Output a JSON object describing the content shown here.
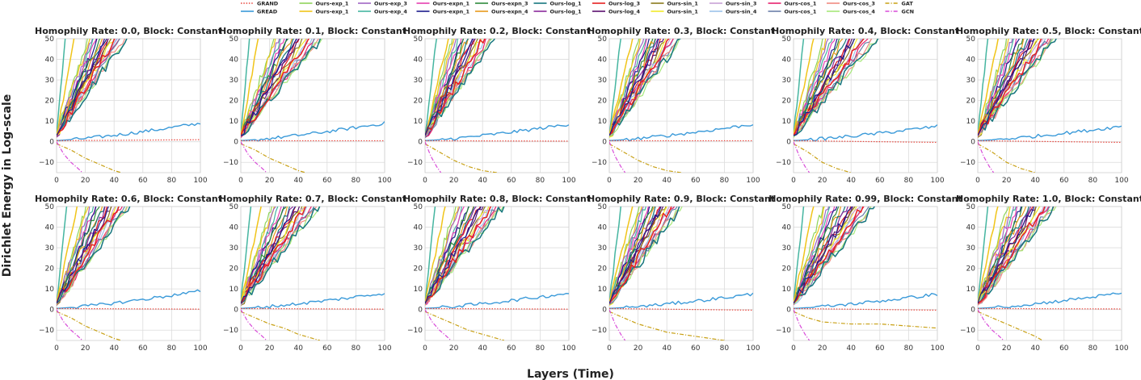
{
  "chart_data": {
    "type": "line",
    "shared_xlabel": "Layers (Time)",
    "shared_ylabel": "Dirichlet Energy in Log-scale",
    "xlim": [
      0,
      100
    ],
    "ylim": [
      -15,
      50
    ],
    "x_ticks": [
      "0",
      "20",
      "40",
      "60",
      "80",
      "100"
    ],
    "y_ticks": [
      "−10",
      "0",
      "10",
      "20",
      "30",
      "40",
      "50"
    ],
    "grid": true,
    "legend_position": "top-center",
    "legend": [
      {
        "name": "GRAND",
        "color": "#e8453c",
        "dash": "dotted"
      },
      {
        "name": "GREAD",
        "color": "#3a9ad9",
        "dash": "solid"
      },
      {
        "name": "Ours-exp_1",
        "color": "#8fd45a",
        "dash": "solid"
      },
      {
        "name": "Ours-exp_1",
        "color": "#f0c419",
        "dash": "solid"
      },
      {
        "name": "Ours-exp_3",
        "color": "#a066c4",
        "dash": "solid"
      },
      {
        "name": "Ours-exp_4",
        "color": "#45b5a0",
        "dash": "solid"
      },
      {
        "name": "Ours-expn_1",
        "color": "#e63fb0",
        "dash": "solid"
      },
      {
        "name": "Ours-expn_1",
        "color": "#1c1c8c",
        "dash": "solid"
      },
      {
        "name": "Ours-expn_3",
        "color": "#2e8b3c",
        "dash": "solid"
      },
      {
        "name": "Ours-expn_4",
        "color": "#e89a1c",
        "dash": "solid"
      },
      {
        "name": "Ours-log_1",
        "color": "#16767e",
        "dash": "solid"
      },
      {
        "name": "Ours-log_1",
        "color": "#8a2a9c",
        "dash": "solid"
      },
      {
        "name": "Ours-log_3",
        "color": "#e62020",
        "dash": "solid"
      },
      {
        "name": "Ours-log_4",
        "color": "#5a0f6e",
        "dash": "solid"
      },
      {
        "name": "Ours-sin_1",
        "color": "#8a7a1c",
        "dash": "solid"
      },
      {
        "name": "Ours-sin_1",
        "color": "#f2ea2a",
        "dash": "solid"
      },
      {
        "name": "Ours-sin_3",
        "color": "#c8a2d6",
        "dash": "solid"
      },
      {
        "name": "Ours-sin_4",
        "color": "#9cc2ea",
        "dash": "solid"
      },
      {
        "name": "Ours-cos_1",
        "color": "#e8226e",
        "dash": "solid"
      },
      {
        "name": "Ours-cos_1",
        "color": "#6a7fa8",
        "dash": "solid"
      },
      {
        "name": "Ours-cos_3",
        "color": "#f08a80",
        "dash": "solid"
      },
      {
        "name": "Ours-cos_4",
        "color": "#a6e87a",
        "dash": "solid"
      },
      {
        "name": "GAT",
        "color": "#c8a014",
        "dash": "dashdot"
      },
      {
        "name": "GCN",
        "color": "#d84ad8",
        "dash": "dashdot"
      }
    ],
    "subplots": [
      {
        "title": "Homophily Rate: 0.0, Block: Constant",
        "gread_end": 9.0,
        "grand_end": 1.0,
        "gat": [
          [
            0,
            -1
          ],
          [
            10,
            -4
          ],
          [
            20,
            -8
          ],
          [
            30,
            -11
          ],
          [
            40,
            -14
          ],
          [
            45,
            -15
          ]
        ],
        "gcn": [
          [
            0,
            0
          ],
          [
            5,
            -6
          ],
          [
            10,
            -10
          ],
          [
            15,
            -13
          ],
          [
            18,
            -15
          ]
        ],
        "steep": [
          [
            0,
            3
          ],
          [
            6,
            50
          ]
        ],
        "slow": [
          [
            0,
            3
          ],
          [
            50,
            52
          ]
        ],
        "fast": [
          [
            0,
            3
          ],
          [
            18,
            50
          ]
        ]
      },
      {
        "title": "Homophily Rate: 0.1, Block: Constant",
        "gread_end": 9.0,
        "grand_end": 0.5,
        "gat": [
          [
            0,
            -1
          ],
          [
            10,
            -4
          ],
          [
            20,
            -8
          ],
          [
            30,
            -11
          ],
          [
            40,
            -14
          ],
          [
            45,
            -15
          ]
        ],
        "gcn": [
          [
            0,
            0
          ],
          [
            5,
            -6
          ],
          [
            10,
            -10
          ],
          [
            15,
            -13
          ],
          [
            18,
            -15
          ]
        ],
        "steep": [
          [
            0,
            3
          ],
          [
            6,
            50
          ]
        ],
        "slow": [
          [
            0,
            3
          ],
          [
            58,
            52
          ]
        ],
        "fast": [
          [
            0,
            3
          ],
          [
            18,
            50
          ]
        ]
      },
      {
        "title": "Homophily Rate: 0.2, Block: Constant",
        "gread_end": 8.5,
        "grand_end": 0.3,
        "gat": [
          [
            0,
            -1
          ],
          [
            10,
            -5
          ],
          [
            20,
            -9
          ],
          [
            30,
            -12
          ],
          [
            40,
            -14
          ],
          [
            50,
            -15
          ]
        ],
        "gcn": [
          [
            0,
            0
          ],
          [
            4,
            -7
          ],
          [
            8,
            -12
          ],
          [
            11,
            -15
          ]
        ],
        "steep": [
          [
            0,
            3
          ],
          [
            8,
            50
          ]
        ],
        "slow": [
          [
            0,
            3
          ],
          [
            50,
            52
          ]
        ],
        "fast": [
          [
            0,
            3
          ],
          [
            14,
            50
          ]
        ]
      },
      {
        "title": "Homophily Rate: 0.3, Block: Constant",
        "gread_end": 8.5,
        "grand_end": 0.5,
        "gat": [
          [
            0,
            -1
          ],
          [
            10,
            -5
          ],
          [
            20,
            -9
          ],
          [
            30,
            -12
          ],
          [
            40,
            -14
          ],
          [
            50,
            -15
          ]
        ],
        "gcn": [
          [
            0,
            0
          ],
          [
            4,
            -7
          ],
          [
            8,
            -12
          ],
          [
            11,
            -15
          ]
        ],
        "steep": [
          [
            0,
            3
          ],
          [
            8,
            50
          ]
        ],
        "slow": [
          [
            0,
            3
          ],
          [
            52,
            52
          ]
        ],
        "fast": [
          [
            0,
            3
          ],
          [
            16,
            50
          ]
        ]
      },
      {
        "title": "Homophily Rate: 0.4, Block: Constant",
        "gread_end": 7.5,
        "grand_end": -0.3,
        "gat": [
          [
            0,
            -1
          ],
          [
            10,
            -5
          ],
          [
            20,
            -10
          ],
          [
            30,
            -13
          ],
          [
            40,
            -15
          ]
        ],
        "gcn": [
          [
            0,
            0
          ],
          [
            4,
            -7
          ],
          [
            8,
            -12
          ],
          [
            11,
            -15
          ]
        ],
        "steep": [
          [
            0,
            3
          ],
          [
            7,
            50
          ]
        ],
        "slow": [
          [
            0,
            3
          ],
          [
            60,
            52
          ]
        ],
        "fast": [
          [
            0,
            3
          ],
          [
            15,
            50
          ]
        ]
      },
      {
        "title": "Homophily Rate: 0.5, Block: Constant",
        "gread_end": 7.5,
        "grand_end": -0.3,
        "gat": [
          [
            0,
            -1
          ],
          [
            10,
            -5
          ],
          [
            20,
            -10
          ],
          [
            30,
            -13
          ],
          [
            40,
            -15
          ]
        ],
        "gcn": [
          [
            0,
            0
          ],
          [
            4,
            -7
          ],
          [
            8,
            -12
          ],
          [
            11,
            -15
          ]
        ],
        "steep": [
          [
            0,
            3
          ],
          [
            7,
            50
          ]
        ],
        "slow": [
          [
            0,
            3
          ],
          [
            56,
            52
          ]
        ],
        "fast": [
          [
            0,
            3
          ],
          [
            15,
            50
          ]
        ]
      },
      {
        "title": "Homophily Rate: 0.6, Block: Constant",
        "gread_end": 9.0,
        "grand_end": 0.2,
        "gat": [
          [
            0,
            -1
          ],
          [
            10,
            -4
          ],
          [
            20,
            -8
          ],
          [
            30,
            -11
          ],
          [
            40,
            -14
          ],
          [
            45,
            -15
          ]
        ],
        "gcn": [
          [
            0,
            0
          ],
          [
            5,
            -6
          ],
          [
            10,
            -10
          ],
          [
            15,
            -13
          ],
          [
            18,
            -15
          ]
        ],
        "steep": [
          [
            0,
            3
          ],
          [
            7,
            50
          ]
        ],
        "slow": [
          [
            0,
            3
          ],
          [
            52,
            52
          ]
        ],
        "fast": [
          [
            0,
            3
          ],
          [
            16,
            50
          ]
        ]
      },
      {
        "title": "Homophily Rate: 0.7, Block: Constant",
        "gread_end": 8.0,
        "grand_end": 0.2,
        "gat": [
          [
            0,
            -1
          ],
          [
            10,
            -4
          ],
          [
            20,
            -7
          ],
          [
            30,
            -9
          ],
          [
            40,
            -12
          ],
          [
            50,
            -14
          ],
          [
            55,
            -15
          ]
        ],
        "gcn": [
          [
            0,
            0
          ],
          [
            5,
            -6
          ],
          [
            10,
            -10
          ],
          [
            15,
            -13
          ],
          [
            18,
            -15
          ]
        ],
        "steep": [
          [
            0,
            3
          ],
          [
            7,
            50
          ]
        ],
        "slow": [
          [
            0,
            3
          ],
          [
            56,
            52
          ]
        ],
        "fast": [
          [
            0,
            3
          ],
          [
            16,
            50
          ]
        ]
      },
      {
        "title": "Homophily Rate: 0.8, Block: Constant",
        "gread_end": 8.0,
        "grand_end": 0.2,
        "gat": [
          [
            0,
            -1
          ],
          [
            10,
            -4
          ],
          [
            20,
            -7
          ],
          [
            30,
            -10
          ],
          [
            40,
            -12
          ],
          [
            50,
            -14
          ],
          [
            55,
            -15
          ]
        ],
        "gcn": [
          [
            0,
            0
          ],
          [
            5,
            -6
          ],
          [
            10,
            -10
          ],
          [
            15,
            -13
          ],
          [
            18,
            -15
          ]
        ],
        "steep": [
          [
            0,
            3
          ],
          [
            7,
            50
          ]
        ],
        "slow": [
          [
            0,
            3
          ],
          [
            56,
            52
          ]
        ],
        "fast": [
          [
            0,
            3
          ],
          [
            16,
            50
          ]
        ]
      },
      {
        "title": "Homophily Rate: 0.9, Block: Constant",
        "gread_end": 7.5,
        "grand_end": -0.3,
        "gat": [
          [
            0,
            -1
          ],
          [
            10,
            -4
          ],
          [
            20,
            -7
          ],
          [
            30,
            -9
          ],
          [
            40,
            -11
          ],
          [
            50,
            -12
          ],
          [
            60,
            -13
          ],
          [
            70,
            -14
          ],
          [
            80,
            -15
          ]
        ],
        "gcn": [
          [
            0,
            0
          ],
          [
            4,
            -7
          ],
          [
            8,
            -12
          ],
          [
            11,
            -15
          ]
        ],
        "steep": [
          [
            0,
            3
          ],
          [
            8,
            50
          ]
        ],
        "slow": [
          [
            0,
            3
          ],
          [
            52,
            52
          ]
        ],
        "fast": [
          [
            0,
            3
          ],
          [
            16,
            50
          ]
        ]
      },
      {
        "title": "Homophily Rate: 0.99, Block: Constant",
        "gread_end": 7.5,
        "grand_end": -0.3,
        "gat": [
          [
            0,
            -1
          ],
          [
            10,
            -4
          ],
          [
            20,
            -6
          ],
          [
            40,
            -7
          ],
          [
            60,
            -7
          ],
          [
            80,
            -8
          ],
          [
            100,
            -9
          ]
        ],
        "gcn": [
          [
            0,
            0
          ],
          [
            4,
            -7
          ],
          [
            8,
            -12
          ],
          [
            11,
            -15
          ]
        ],
        "steep": [
          [
            0,
            3
          ],
          [
            7,
            50
          ]
        ],
        "slow": [
          [
            0,
            3
          ],
          [
            58,
            52
          ]
        ],
        "fast": [
          [
            0,
            3
          ],
          [
            15,
            50
          ]
        ]
      },
      {
        "title": "Homophily Rate: 1.0, Block: Constant",
        "gread_end": 8.0,
        "grand_end": 0.3,
        "gat": [
          [
            0,
            -1
          ],
          [
            10,
            -4
          ],
          [
            20,
            -7
          ],
          [
            30,
            -10
          ],
          [
            40,
            -13
          ],
          [
            45,
            -15
          ]
        ],
        "gcn": [
          [
            0,
            0
          ],
          [
            5,
            -6
          ],
          [
            10,
            -10
          ],
          [
            15,
            -13
          ],
          [
            18,
            -15
          ]
        ],
        "steep": [
          [
            0,
            3
          ],
          [
            7,
            50
          ]
        ],
        "slow": [
          [
            0,
            3
          ],
          [
            56,
            52
          ]
        ],
        "fast": [
          [
            0,
            3
          ],
          [
            16,
            50
          ]
        ]
      }
    ]
  }
}
